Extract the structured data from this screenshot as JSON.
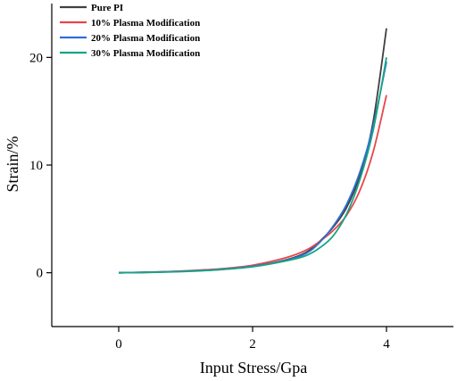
{
  "chart_data": {
    "type": "line",
    "xlabel": "Input Stress/Gpa",
    "ylabel": "Strain/%",
    "xlim": [
      -1,
      5
    ],
    "ylim": [
      -5,
      25
    ],
    "x_ticks": [
      0,
      2,
      4
    ],
    "y_ticks": [
      0,
      10,
      20
    ],
    "x_tick_labels": [
      "0",
      "2",
      "4"
    ],
    "y_tick_labels": [
      "0",
      "10",
      "20"
    ],
    "grid": false,
    "legend_position": "top-left",
    "series": [
      {
        "name": "Pure PI",
        "color": "#404040",
        "x": [
          0,
          0.5,
          1.0,
          1.5,
          2.0,
          2.5,
          2.8,
          3.0,
          3.2,
          3.4,
          3.6,
          3.8,
          4.0
        ],
        "y": [
          0,
          0.05,
          0.15,
          0.3,
          0.6,
          1.2,
          1.9,
          2.9,
          4.2,
          6.0,
          9.0,
          14.0,
          22.7
        ]
      },
      {
        "name": "10% Plasma Modification",
        "color": "#e8464b",
        "x": [
          0,
          0.5,
          1.0,
          1.5,
          2.0,
          2.5,
          2.8,
          3.0,
          3.2,
          3.4,
          3.6,
          3.8,
          4.0
        ],
        "y": [
          0,
          0.06,
          0.18,
          0.35,
          0.7,
          1.4,
          2.1,
          2.9,
          3.9,
          5.3,
          7.6,
          11.2,
          16.5
        ]
      },
      {
        "name": "20% Plasma Modification",
        "color": "#2f6fd6",
        "x": [
          0,
          0.5,
          1.0,
          1.5,
          2.0,
          2.5,
          2.8,
          3.0,
          3.2,
          3.4,
          3.6,
          3.8,
          4.0
        ],
        "y": [
          0,
          0.05,
          0.14,
          0.3,
          0.6,
          1.15,
          1.8,
          2.8,
          4.3,
          6.3,
          9.3,
          13.6,
          19.6
        ]
      },
      {
        "name": "30% Plasma Modification",
        "color": "#17a584",
        "x": [
          0,
          0.5,
          1.0,
          1.5,
          2.0,
          2.5,
          2.8,
          3.0,
          3.2,
          3.4,
          3.6,
          3.8,
          4.0
        ],
        "y": [
          0,
          0.04,
          0.12,
          0.28,
          0.55,
          1.1,
          1.6,
          2.3,
          3.4,
          5.4,
          8.6,
          13.2,
          20.0
        ]
      }
    ]
  }
}
